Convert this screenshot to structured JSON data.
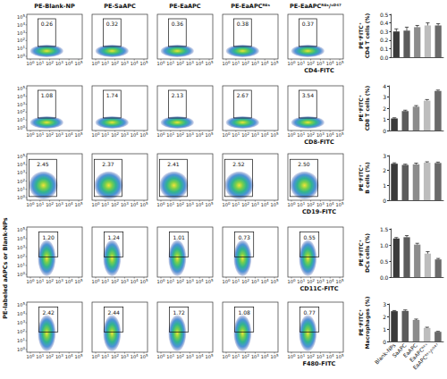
{
  "flow_panels": {
    "y_label": "PE-labeled aAPCs or Blank-NPs",
    "column_titles": [
      "PE-Blank-NP",
      "PE-SaAPC",
      "PE-EaAPC",
      "PE-EaAPCᴿᴱˢ",
      "PE-EaAPCᴿᴱˢ/ᶜᴰ⁴⁷"
    ],
    "decade_base": "10",
    "decade_exponents": [
      0,
      1,
      2,
      3,
      4,
      5
    ],
    "rows": [
      {
        "x_label": "CD4-FITC",
        "gates": [
          "0.26",
          "0.32",
          "0.36",
          "0.38",
          "0.37"
        ]
      },
      {
        "x_label": "CD8-FITC",
        "gates": [
          "1.08",
          "1.74",
          "2.13",
          "2.67",
          "3.54"
        ]
      },
      {
        "x_label": "CD19-FITC",
        "gates": [
          "2.45",
          "2.37",
          "2.41",
          "2.52",
          "2.50"
        ]
      },
      {
        "x_label": "CD11C-FITC",
        "gates": [
          "1.20",
          "1.24",
          "1.01",
          "0.73",
          "0.55"
        ]
      },
      {
        "x_label": "F480-FITC",
        "gates": [
          "2.42",
          "2.44",
          "1.72",
          "1.08",
          "0.77"
        ]
      }
    ]
  },
  "chart_data": [
    {
      "type": "bar",
      "ylabel": "PE⁺FITC⁺\nCD4 T cells (%)",
      "categories": [
        "Blank-NPs",
        "SaAPC",
        "EaAPC",
        "EaAPCᴿᴱˢ",
        "EaAPCᴿᴱˢ/ᶜᴰ⁴⁷"
      ],
      "values": [
        0.3,
        0.31,
        0.35,
        0.37,
        0.37
      ],
      "errors": [
        0.03,
        0.04,
        0.02,
        0.03,
        0.02
      ],
      "colors": [
        "#3a3a3a",
        "#5c5c5c",
        "#8c8c8c",
        "#bdbdbd",
        "#6a6a6a"
      ],
      "ylim": [
        0,
        0.5
      ],
      "yticks": [
        {
          "value": 0,
          "label": "0.0"
        },
        {
          "value": 0.1,
          "label": "0.1"
        },
        {
          "value": 0.2,
          "label": "0.2"
        },
        {
          "value": 0.3,
          "label": "0.3"
        },
        {
          "value": 0.4,
          "label": "0.4"
        },
        {
          "value": 0.5,
          "label": "0.5"
        }
      ],
      "tick_labels": "y",
      "grid": false
    },
    {
      "type": "bar",
      "ylabel": "PE⁺FITC⁺\nCD8 T cells (%)",
      "categories": [
        "Blank-NPs",
        "SaAPC",
        "EaAPC",
        "EaAPCᴿᴱˢ",
        "EaAPCᴿᴱˢ/ᶜᴰ⁴⁷"
      ],
      "values": [
        1.08,
        1.74,
        2.13,
        2.67,
        3.54
      ],
      "errors": [
        0.06,
        0.08,
        0.1,
        0.1,
        0.08
      ],
      "colors": [
        "#3a3a3a",
        "#5c5c5c",
        "#8c8c8c",
        "#bdbdbd",
        "#6a6a6a"
      ],
      "ylim": [
        0,
        4
      ],
      "yticks": [
        0,
        1,
        2,
        3,
        4
      ],
      "tick_labels": "y",
      "grid": false
    },
    {
      "type": "bar",
      "ylabel": "PE⁺FITC⁺\nB cells (%)",
      "categories": [
        "Blank-NPs",
        "SaAPC",
        "EaAPC",
        "EaAPCᴿᴱˢ",
        "EaAPCᴿᴱˢ/ᶜᴰ⁴⁷"
      ],
      "values": [
        2.45,
        2.37,
        2.41,
        2.52,
        2.5
      ],
      "errors": [
        0.06,
        0.05,
        0.08,
        0.06,
        0.06
      ],
      "colors": [
        "#3a3a3a",
        "#5c5c5c",
        "#8c8c8c",
        "#bdbdbd",
        "#6a6a6a"
      ],
      "ylim": [
        0,
        3
      ],
      "yticks": [
        0,
        1,
        2,
        3
      ],
      "tick_labels": "y",
      "grid": false
    },
    {
      "type": "bar",
      "ylabel": "PE⁺FITC⁺\nDCs cells (%)",
      "categories": [
        "Blank-NPs",
        "SaAPC",
        "EaAPC",
        "EaAPCᴿᴱˢ",
        "EaAPCᴿᴱˢ/ᶜᴰ⁴⁷"
      ],
      "values": [
        1.2,
        1.24,
        1.01,
        0.73,
        0.55
      ],
      "errors": [
        0.03,
        0.05,
        0.04,
        0.06,
        0.03
      ],
      "colors": [
        "#3a3a3a",
        "#5c5c5c",
        "#8c8c8c",
        "#bdbdbd",
        "#6a6a6a"
      ],
      "ylim": [
        0,
        1.5
      ],
      "yticks": [
        {
          "value": 0,
          "label": "0.0"
        },
        {
          "value": 0.5,
          "label": "0.5"
        },
        {
          "value": 1,
          "label": "1.0"
        },
        {
          "value": 1.5,
          "label": "1.5"
        }
      ],
      "tick_labels": "y",
      "grid": false
    },
    {
      "type": "bar",
      "ylabel": "PE⁺FITC⁺\nMacrophages (%)",
      "categories": [
        "Blank-NPs",
        "SaAPC",
        "EaAPC",
        "EaAPCᴿᴱˢ",
        "EaAPCᴿᴱˢ/ᶜᴰ⁴⁷"
      ],
      "values": [
        2.42,
        2.44,
        1.72,
        1.08,
        0.77
      ],
      "errors": [
        0.05,
        0.08,
        0.07,
        0.06,
        0.04
      ],
      "colors": [
        "#3a3a3a",
        "#5c5c5c",
        "#8c8c8c",
        "#bdbdbd",
        "#6a6a6a"
      ],
      "ylim": [
        0,
        3
      ],
      "yticks": [
        0,
        1,
        2,
        3
      ],
      "grid": false
    }
  ]
}
